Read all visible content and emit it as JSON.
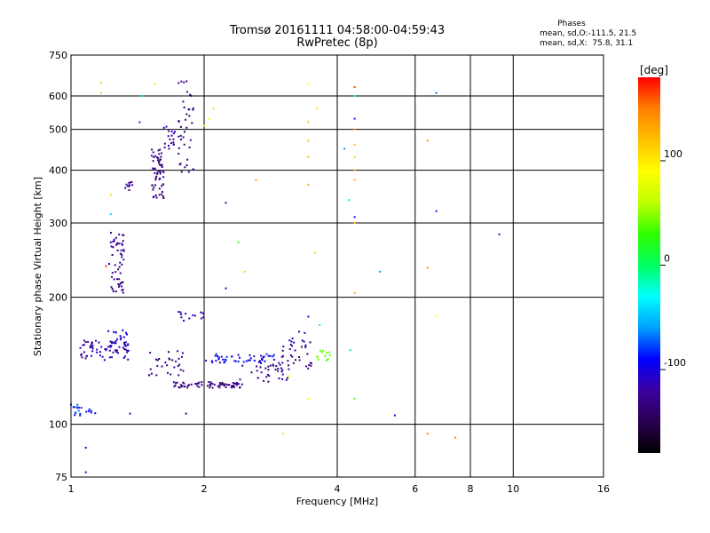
{
  "title": "Tromsø 20161111 04:58:00-04:59:43",
  "subtitle": "RwPretec (8p)",
  "phase_stats": {
    "heading": "Phases",
    "line_o": "mean, sd,O:-111.5, 21.5",
    "line_x": "mean, sd,X:  75.8, 31.1"
  },
  "colorbar": {
    "label": "[deg]",
    "min": -180,
    "max": 180,
    "ticks": [
      100,
      0,
      -100
    ],
    "colors": [
      "#000000",
      "#2a0050",
      "#3c00a0",
      "#0000ff",
      "#00a0ff",
      "#00ffff",
      "#00ff60",
      "#30ff00",
      "#c0ff00",
      "#ffff00",
      "#ffc000",
      "#ff8000",
      "#ff0000"
    ]
  },
  "chart_data": {
    "type": "scatter",
    "xlabel": "Frequency [MHz]",
    "ylabel": "Stationary phase Virtual Height [km]",
    "xscale": "log",
    "yscale": "log",
    "xlim": [
      1,
      16
    ],
    "ylim": [
      75,
      750
    ],
    "xticks": [
      1,
      2,
      4,
      6,
      8,
      10,
      16
    ],
    "yticks": [
      75,
      100,
      200,
      300,
      400,
      500,
      600,
      750
    ],
    "grid": true,
    "colorscale": "phase [deg], -180 to 180",
    "clusters": [
      {
        "x": [
          1.0,
          1.06
        ],
        "y": [
          104,
          112
        ],
        "phase": -85,
        "n": 14
      },
      {
        "x": [
          1.08,
          1.14
        ],
        "y": [
          106,
          110
        ],
        "phase": -90,
        "n": 6
      },
      {
        "x": [
          1.05,
          1.36
        ],
        "y": [
          142,
          158
        ],
        "phase": -118,
        "n": 60
      },
      {
        "x": [
          1.2,
          1.35
        ],
        "y": [
          148,
          168
        ],
        "phase": -105,
        "n": 25
      },
      {
        "x": [
          1.23,
          1.32
        ],
        "y": [
          205,
          285
        ],
        "phase": -125,
        "n": 55
      },
      {
        "x": [
          1.32,
          1.38
        ],
        "y": [
          355,
          380
        ],
        "phase": -120,
        "n": 10
      },
      {
        "x": [
          1.52,
          1.62
        ],
        "y": [
          340,
          450
        ],
        "phase": -130,
        "n": 60
      },
      {
        "x": [
          1.62,
          1.72
        ],
        "y": [
          450,
          510
        ],
        "phase": -125,
        "n": 18
      },
      {
        "x": [
          1.75,
          1.9
        ],
        "y": [
          390,
          660
        ],
        "phase": -130,
        "n": 40
      },
      {
        "x": [
          1.5,
          1.8
        ],
        "y": [
          130,
          150
        ],
        "phase": -128,
        "n": 30
      },
      {
        "x": [
          1.7,
          2.45
        ],
        "y": [
          122,
          126
        ],
        "phase": -132,
        "n": 70
      },
      {
        "x": [
          2.4,
          3.1
        ],
        "y": [
          126,
          140
        ],
        "phase": -128,
        "n": 35
      },
      {
        "x": [
          3.0,
          3.5
        ],
        "y": [
          135,
          160
        ],
        "phase": -130,
        "n": 30
      },
      {
        "x": [
          1.75,
          2.0
        ],
        "y": [
          175,
          185
        ],
        "phase": -115,
        "n": 14
      },
      {
        "x": [
          2.0,
          2.9
        ],
        "y": [
          140,
          147
        ],
        "phase": -95,
        "n": 50
      },
      {
        "x": [
          3.6,
          3.9
        ],
        "y": [
          140,
          150
        ],
        "phase": 45,
        "n": 12
      },
      {
        "x": [
          3.1,
          3.4
        ],
        "y": [
          145,
          170
        ],
        "phase": -112,
        "n": 8
      }
    ],
    "points": [
      {
        "x": 1.17,
        "y": 645,
        "phase": 110
      },
      {
        "x": 1.17,
        "y": 610,
        "phase": 120
      },
      {
        "x": 1.55,
        "y": 640,
        "phase": 100
      },
      {
        "x": 1.45,
        "y": 600,
        "phase": -40
      },
      {
        "x": 1.43,
        "y": 520,
        "phase": -85
      },
      {
        "x": 2.05,
        "y": 530,
        "phase": 95
      },
      {
        "x": 2.1,
        "y": 560,
        "phase": 110
      },
      {
        "x": 2.0,
        "y": 510,
        "phase": 100
      },
      {
        "x": 2.62,
        "y": 380,
        "phase": 140
      },
      {
        "x": 2.24,
        "y": 335,
        "phase": -120
      },
      {
        "x": 2.39,
        "y": 270,
        "phase": 30
      },
      {
        "x": 2.47,
        "y": 230,
        "phase": 110
      },
      {
        "x": 2.24,
        "y": 210,
        "phase": -115
      },
      {
        "x": 1.82,
        "y": 106,
        "phase": -130
      },
      {
        "x": 1.36,
        "y": 106,
        "phase": -120
      },
      {
        "x": 1.08,
        "y": 88,
        "phase": -95
      },
      {
        "x": 1.08,
        "y": 77,
        "phase": -110
      },
      {
        "x": 3.44,
        "y": 640,
        "phase": 90
      },
      {
        "x": 3.44,
        "y": 520,
        "phase": 120
      },
      {
        "x": 3.44,
        "y": 470,
        "phase": 120
      },
      {
        "x": 3.44,
        "y": 430,
        "phase": 120
      },
      {
        "x": 3.44,
        "y": 370,
        "phase": 130
      },
      {
        "x": 3.56,
        "y": 255,
        "phase": 110
      },
      {
        "x": 3.44,
        "y": 180,
        "phase": -110
      },
      {
        "x": 3.44,
        "y": 115,
        "phase": 95
      },
      {
        "x": 3.6,
        "y": 560,
        "phase": 110
      },
      {
        "x": 4.38,
        "y": 630,
        "phase": 160
      },
      {
        "x": 4.38,
        "y": 600,
        "phase": -30
      },
      {
        "x": 4.38,
        "y": 530,
        "phase": -85
      },
      {
        "x": 4.38,
        "y": 500,
        "phase": 130
      },
      {
        "x": 4.38,
        "y": 460,
        "phase": 120
      },
      {
        "x": 4.38,
        "y": 430,
        "phase": 110
      },
      {
        "x": 4.38,
        "y": 400,
        "phase": 120
      },
      {
        "x": 4.38,
        "y": 380,
        "phase": 130
      },
      {
        "x": 4.38,
        "y": 310,
        "phase": -110
      },
      {
        "x": 4.38,
        "y": 300,
        "phase": 110
      },
      {
        "x": 4.38,
        "y": 205,
        "phase": 125
      },
      {
        "x": 4.38,
        "y": 115,
        "phase": 40
      },
      {
        "x": 4.25,
        "y": 340,
        "phase": -40
      },
      {
        "x": 4.15,
        "y": 450,
        "phase": -60
      },
      {
        "x": 4.28,
        "y": 150,
        "phase": -20
      },
      {
        "x": 5.0,
        "y": 230,
        "phase": -60
      },
      {
        "x": 5.4,
        "y": 105,
        "phase": -95
      },
      {
        "x": 6.4,
        "y": 470,
        "phase": 140
      },
      {
        "x": 6.4,
        "y": 235,
        "phase": 140
      },
      {
        "x": 6.4,
        "y": 95,
        "phase": 150
      },
      {
        "x": 6.7,
        "y": 610,
        "phase": -70
      },
      {
        "x": 6.7,
        "y": 320,
        "phase": -85
      },
      {
        "x": 6.7,
        "y": 180,
        "phase": 90
      },
      {
        "x": 7.4,
        "y": 93,
        "phase": 150
      },
      {
        "x": 9.3,
        "y": 282,
        "phase": -120
      },
      {
        "x": 3.02,
        "y": 95,
        "phase": 60
      },
      {
        "x": 3.1,
        "y": 130,
        "phase": 70
      },
      {
        "x": 3.65,
        "y": 172,
        "phase": -10
      },
      {
        "x": 1.23,
        "y": 350,
        "phase": 110
      },
      {
        "x": 1.2,
        "y": 237,
        "phase": 170
      },
      {
        "x": 1.23,
        "y": 315,
        "phase": -40
      },
      {
        "x": 1.22,
        "y": 240,
        "phase": -90
      }
    ]
  }
}
